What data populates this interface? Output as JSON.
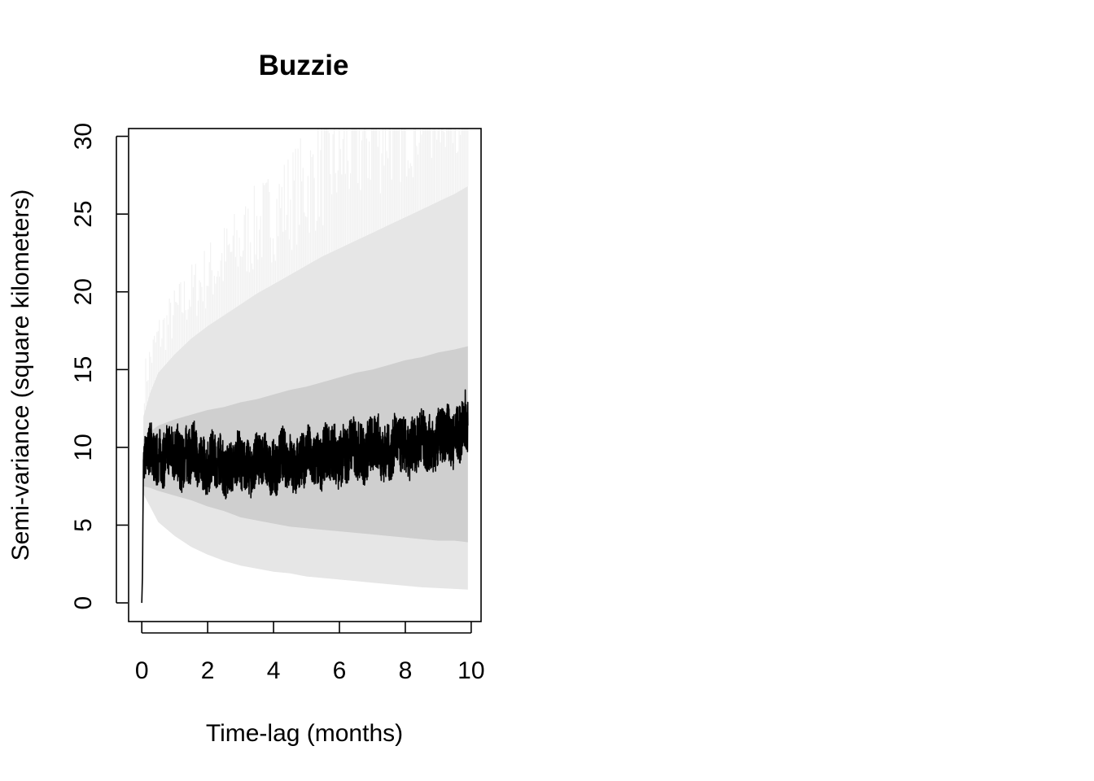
{
  "chart_data": {
    "type": "line",
    "title": "Buzzie",
    "xlabel": "Time-lag (months)",
    "ylabel": "Semi-variance (square kilometers)",
    "xlim": [
      -0.4,
      10.3
    ],
    "ylim": [
      -1.2,
      30.5
    ],
    "xticks": [
      0,
      2,
      4,
      6,
      8,
      10
    ],
    "xtick_labels": [
      "0",
      "2",
      "4",
      "6",
      "8",
      "10"
    ],
    "yticks": [
      0,
      5,
      10,
      15,
      20,
      25,
      30
    ],
    "ytick_labels": [
      "0",
      "5",
      "10",
      "15",
      "20",
      "25",
      "30"
    ],
    "grid": false,
    "legend": "none",
    "colors": {
      "line": "#000000",
      "band_inner": "#cfcfcf",
      "band_outer": "#e6e6e6",
      "band_extreme": "#f2f2f2"
    },
    "series": [
      {
        "role": "empirical semi-variance",
        "x": [
          0,
          0.02,
          0.05,
          0.1,
          0.25,
          0.5,
          0.75,
          1,
          1.25,
          1.5,
          1.75,
          2,
          2.25,
          2.5,
          2.75,
          3,
          3.25,
          3.5,
          3.75,
          4,
          4.25,
          4.5,
          4.75,
          5,
          5.25,
          5.5,
          5.75,
          6,
          6.25,
          6.5,
          6.75,
          7,
          7.25,
          7.5,
          7.75,
          8,
          8.25,
          8.5,
          8.75,
          9,
          9.25,
          9.5,
          9.75,
          9.9
        ],
        "y": [
          0,
          1.7,
          8.2,
          9.3,
          9.6,
          9.6,
          9.4,
          9.6,
          9.5,
          9.4,
          9.2,
          9.1,
          9.0,
          8.9,
          8.8,
          8.9,
          8.9,
          9.0,
          9.0,
          8.9,
          9.1,
          9.1,
          9.1,
          9.2,
          9.3,
          9.4,
          9.4,
          9.6,
          9.7,
          9.8,
          9.9,
          10.0,
          9.9,
          9.9,
          10.0,
          10.1,
          10.2,
          10.3,
          10.4,
          10.5,
          10.7,
          10.9,
          11.1,
          11.3
        ],
        "spread": [
          0,
          0,
          1.0,
          1.4,
          1.7,
          1.8,
          1.8,
          1.9,
          1.9,
          1.8,
          1.8,
          1.8,
          1.7,
          1.7,
          1.7,
          1.7,
          1.7,
          1.7,
          1.7,
          1.7,
          1.8,
          1.8,
          1.8,
          1.8,
          1.8,
          1.8,
          1.9,
          1.9,
          1.9,
          1.9,
          1.9,
          1.9,
          1.8,
          1.8,
          1.8,
          1.8,
          1.8,
          1.8,
          1.8,
          1.8,
          1.8,
          1.8,
          1.9,
          2.0
        ]
      }
    ],
    "bands": [
      {
        "role": "outer confidence interval",
        "x": [
          0,
          0.05,
          0.25,
          0.5,
          1,
          1.5,
          2,
          2.5,
          3,
          3.5,
          4,
          4.5,
          5,
          5.5,
          6,
          6.5,
          7,
          7.5,
          8,
          8.5,
          9,
          9.5,
          9.9
        ],
        "lower": [
          0,
          7.0,
          6.2,
          5.2,
          4.3,
          3.6,
          3.1,
          2.7,
          2.4,
          2.2,
          2.0,
          1.9,
          1.7,
          1.6,
          1.5,
          1.4,
          1.3,
          1.2,
          1.1,
          1.0,
          0.95,
          0.9,
          0.85
        ],
        "upper": [
          0,
          12.0,
          13.5,
          14.8,
          16.0,
          17.0,
          17.8,
          18.5,
          19.2,
          19.9,
          20.5,
          21.1,
          21.7,
          22.3,
          22.8,
          23.3,
          23.8,
          24.3,
          24.8,
          25.3,
          25.8,
          26.3,
          26.8
        ]
      },
      {
        "role": "inner confidence interval",
        "x": [
          0,
          0.05,
          0.25,
          0.5,
          1,
          1.5,
          2,
          2.5,
          3,
          3.5,
          4,
          4.5,
          5,
          5.5,
          6,
          6.5,
          7,
          7.5,
          8,
          8.5,
          9,
          9.5,
          9.9
        ],
        "lower": [
          0,
          7.5,
          7.4,
          7.2,
          6.9,
          6.6,
          6.2,
          5.9,
          5.5,
          5.3,
          5.1,
          4.9,
          4.8,
          4.7,
          4.6,
          4.5,
          4.4,
          4.3,
          4.2,
          4.1,
          4.0,
          4.0,
          3.9
        ],
        "upper": [
          0,
          10.5,
          11.0,
          11.4,
          11.8,
          12.1,
          12.4,
          12.6,
          12.9,
          13.1,
          13.4,
          13.7,
          13.9,
          14.2,
          14.5,
          14.8,
          15.0,
          15.3,
          15.6,
          15.8,
          16.1,
          16.3,
          16.5
        ]
      }
    ]
  }
}
